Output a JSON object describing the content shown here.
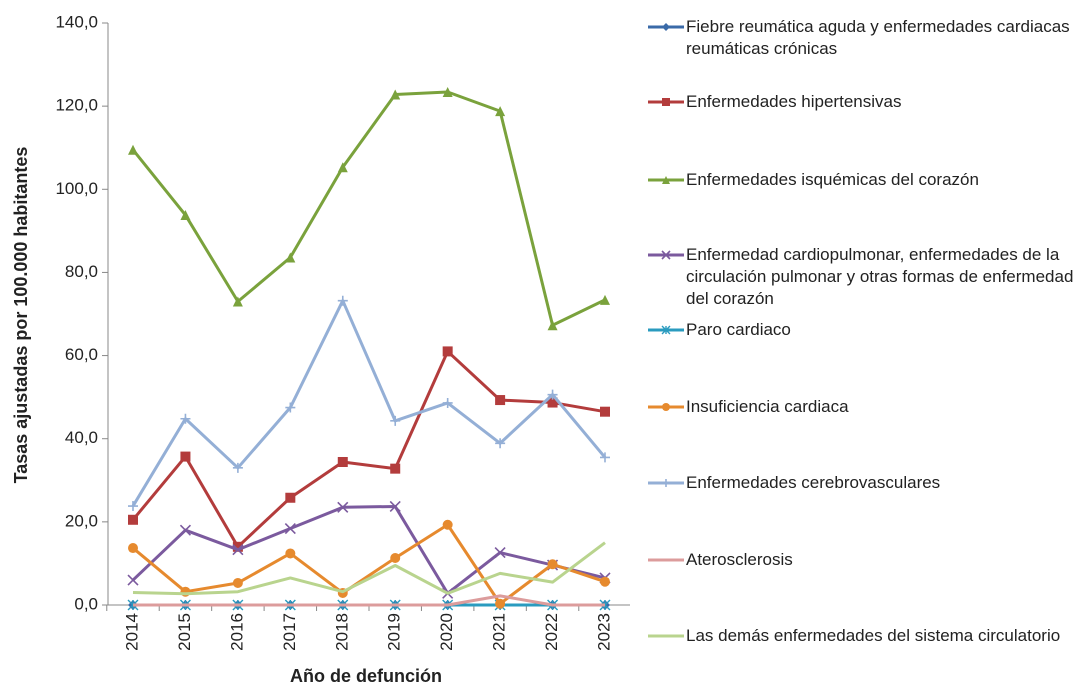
{
  "chart_data": {
    "type": "line",
    "y_label": "Tasas ajustadas por 100.000 habitantes",
    "x_label": "Año de defunción",
    "categories": [
      "2014",
      "2015",
      "2016",
      "2017",
      "2018",
      "2019",
      "2020",
      "2021",
      "2022",
      "2023"
    ],
    "ylim": [
      0,
      140
    ],
    "yticks": [
      {
        "value": 0,
        "label": "0,0"
      },
      {
        "value": 20,
        "label": "20,0"
      },
      {
        "value": 40,
        "label": "40,0"
      },
      {
        "value": 60,
        "label": "60,0"
      },
      {
        "value": 80,
        "label": "80,0"
      },
      {
        "value": 100,
        "label": "100,0"
      },
      {
        "value": 120,
        "label": "120,0"
      },
      {
        "value": 140,
        "label": "140,0"
      }
    ],
    "grid": false,
    "legend": "right",
    "series": [
      {
        "name": "Fiebre reumática aguda y enfermedades cardiacas reumáticas crónicas",
        "color": "#3a6aa8",
        "marker": "diamond",
        "values": [
          0,
          0,
          0,
          0,
          0,
          0,
          0,
          0,
          0,
          0
        ]
      },
      {
        "name": "Enfermedades hipertensivas",
        "color": "#b33c3c",
        "marker": "square",
        "values": [
          20.5,
          35.7,
          14,
          25.8,
          34.4,
          32.8,
          61,
          49.3,
          48.7,
          46.5
        ]
      },
      {
        "name": "Enfermedades isquémicas del corazón",
        "color": "#7aa23c",
        "marker": "triangle",
        "values": [
          109.5,
          93.8,
          73,
          83.6,
          105.3,
          122.8,
          123.4,
          118.8,
          67.3,
          73.4
        ]
      },
      {
        "name": "Enfermedad cardiopulmonar, enfermedades de la circulación pulmonar y otras formas de enfermedad del corazón",
        "color": "#7b5a9e",
        "marker": "x",
        "values": [
          6,
          18,
          13.3,
          18.4,
          23.5,
          23.7,
          2.8,
          12.6,
          9.6,
          6.5
        ]
      },
      {
        "name": "Paro cardiaco",
        "color": "#2a9bbf",
        "marker": "asterisk",
        "values": [
          0,
          0,
          0,
          0,
          0,
          0,
          0,
          0,
          0,
          0
        ]
      },
      {
        "name": "Insuficiencia cardiaca",
        "color": "#e68a2e",
        "marker": "circle",
        "values": [
          13.7,
          3.2,
          5.3,
          12.4,
          2.9,
          11.3,
          19.3,
          0.3,
          9.8,
          5.6
        ]
      },
      {
        "name": "Enfermedades cerebrovasculares",
        "color": "#94afd6",
        "marker": "plus",
        "values": [
          23.8,
          44.8,
          33,
          47.5,
          73.2,
          44.3,
          48.6,
          38.9,
          50.6,
          35.5
        ]
      },
      {
        "name": "Aterosclerosis",
        "color": "#dc9c9c",
        "marker": "none",
        "values": [
          0,
          0,
          0,
          0,
          0,
          0,
          0,
          2.2,
          0,
          0
        ]
      },
      {
        "name": "Las demás enfermedades del sistema circulatorio",
        "color": "#b9d48e",
        "marker": "none",
        "values": [
          3,
          2.7,
          3.2,
          6.5,
          3.2,
          9.5,
          2.8,
          7.6,
          5.5,
          15
        ]
      }
    ]
  }
}
